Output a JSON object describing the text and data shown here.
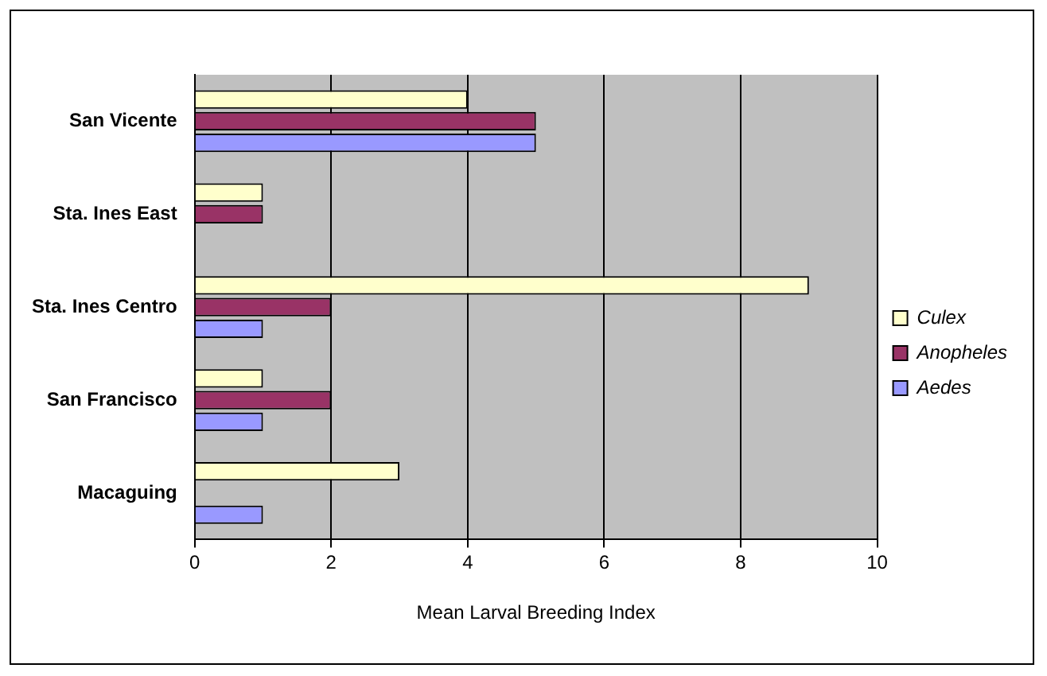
{
  "chart_data": {
    "type": "bar",
    "orientation": "horizontal",
    "xlabel": "Mean Larval Breeding Index",
    "categories": [
      "San Vicente",
      "Sta. Ines East",
      "Sta. Ines Centro",
      "San Francisco",
      "Macaguing"
    ],
    "series": [
      {
        "name": "Culex",
        "color": "#ffffcc",
        "values": [
          4,
          1,
          9,
          1,
          3
        ]
      },
      {
        "name": "Anopheles",
        "color": "#993366",
        "values": [
          5,
          1,
          2,
          2,
          0
        ]
      },
      {
        "name": "Aedes",
        "color": "#9999ff",
        "values": [
          5,
          0,
          1,
          1,
          1
        ]
      }
    ],
    "xlim": [
      0,
      10
    ],
    "xticks": [
      0,
      2,
      4,
      6,
      8,
      10
    ],
    "grid": "x",
    "legend": "right"
  }
}
